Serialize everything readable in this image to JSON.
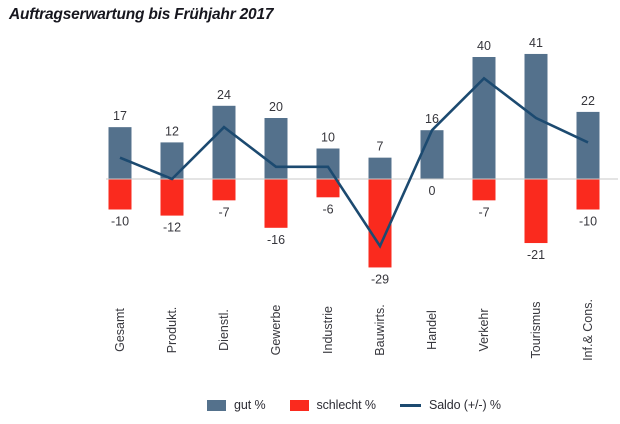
{
  "title": "Auftragserwartung bis Frühjahr 2017",
  "colors": {
    "gut_bar": "#54718C",
    "schlecht_bar": "#FA2A1E",
    "saldo_line": "#1C4A70",
    "axis_line": "#C9C9C9",
    "value_label_text": "#36363c",
    "category_text": "#38383e",
    "title_text": "#17171f",
    "background": "#FFFFFF"
  },
  "chart_data": {
    "type": "bar",
    "subtype": "bar-with-line-combo",
    "title": "Auftragserwartung bis Frühjahr 2017",
    "categories": [
      "Gesamt",
      "Produkt.",
      "Dienstl.",
      "Gewerbe",
      "Industrie",
      "Bauwirts.",
      "Handel",
      "Verkehr",
      "Tourismus",
      "Inf.& Cons."
    ],
    "series": [
      {
        "name": "gut %",
        "type": "bar",
        "color": "#54718C",
        "values": [
          17,
          12,
          24,
          20,
          10,
          7,
          16,
          40,
          41,
          22
        ]
      },
      {
        "name": "schlecht %",
        "type": "bar",
        "color": "#FA2A1E",
        "values": [
          -10,
          -12,
          -7,
          -16,
          -6,
          -29,
          0,
          -7,
          -21,
          -10
        ]
      },
      {
        "name": "Saldo (+/-) %",
        "type": "line",
        "color": "#1C4A70",
        "values": [
          7,
          0,
          17,
          4,
          4,
          -22,
          16,
          33,
          20,
          12
        ]
      }
    ],
    "value_labels_shown": true,
    "xlabel": "",
    "ylabel": "",
    "ylim": [
      -33,
      45
    ],
    "grid": false,
    "y_axis_ticks_shown": false,
    "legend_position": "bottom"
  },
  "legend": {
    "items": [
      {
        "label": "gut %",
        "swatch": "bar"
      },
      {
        "label": "schlecht %",
        "swatch": "bar"
      },
      {
        "label": "Saldo (+/-) %",
        "swatch": "line"
      }
    ]
  }
}
